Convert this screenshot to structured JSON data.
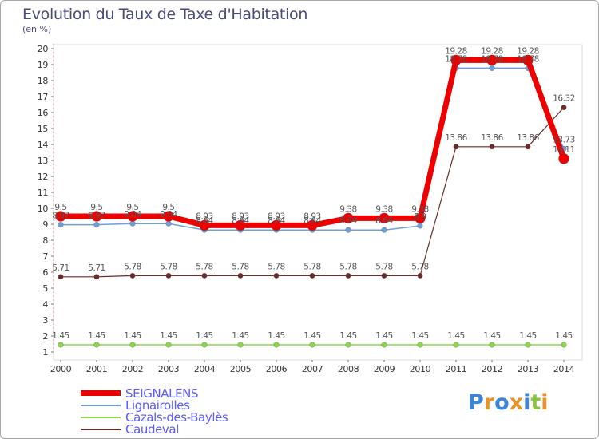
{
  "chart_data": {
    "type": "line",
    "title": "Evolution du Taux de Taxe d'Habitation",
    "ylabel": "(en %)",
    "xlabel": "",
    "ylim": [
      1,
      20
    ],
    "yticks": [
      1,
      2,
      3,
      4,
      5,
      6,
      7,
      8,
      9,
      10,
      11,
      12,
      13,
      14,
      15,
      16,
      17,
      18,
      19,
      20
    ],
    "categories": [
      "2000",
      "2001",
      "2002",
      "2003",
      "2004",
      "2005",
      "2006",
      "2007",
      "2008",
      "2009",
      "2010",
      "2011",
      "2012",
      "2013",
      "2014"
    ],
    "series": [
      {
        "name": "SEIGNALENS",
        "color": "#ee0000",
        "values": [
          9.5,
          9.5,
          9.5,
          9.5,
          8.93,
          8.93,
          8.93,
          8.93,
          9.38,
          9.38,
          9.38,
          19.28,
          19.28,
          19.28,
          13.11
        ],
        "labels": [
          "9.5",
          "9.5",
          "9.5",
          "9.5",
          "8.93",
          "8.93",
          "8.93",
          "8.93",
          "9.38",
          "9.38",
          "9.38",
          "19.28",
          "19.28",
          "19.28",
          "13.11"
        ]
      },
      {
        "name": "Lignairolles",
        "color": "#6f9fd8",
        "values": [
          8.97,
          8.97,
          9.04,
          9.04,
          8.64,
          8.64,
          8.64,
          8.64,
          8.64,
          8.64,
          8.9,
          18.78,
          18.78,
          18.78,
          13.73
        ],
        "labels": [
          "8.97",
          "8.97",
          "9.04",
          "9.04",
          "8.64",
          "8.64",
          "8.64",
          "8.64",
          "8.64",
          "8.64",
          "8.9",
          "18.78",
          "18.78",
          "18.78",
          "13.73"
        ]
      },
      {
        "name": "Cazals-des-Baylès",
        "color": "#8ad84a",
        "values": [
          1.45,
          1.45,
          1.45,
          1.45,
          1.45,
          1.45,
          1.45,
          1.45,
          1.45,
          1.45,
          1.45,
          1.45,
          1.45,
          1.45,
          1.45
        ],
        "labels": [
          "1.45",
          "1.45",
          "1.45",
          "1.45",
          "1.45",
          "1.45",
          "1.45",
          "1.45",
          "1.45",
          "1.45",
          "1.45",
          "1.45",
          "1.45",
          "1.45",
          "1.45"
        ]
      },
      {
        "name": "Caudeval",
        "color": "#6b2a2a",
        "values": [
          5.71,
          5.71,
          5.78,
          5.78,
          5.78,
          5.78,
          5.78,
          5.78,
          5.78,
          5.78,
          5.78,
          13.86,
          13.86,
          13.86,
          16.32
        ],
        "labels": [
          "5.71",
          "5.71",
          "5.78",
          "5.78",
          "5.78",
          "5.78",
          "5.78",
          "5.78",
          "5.78",
          "5.78",
          "5.78",
          "13.86",
          "13.86",
          "13.86",
          "16.32"
        ]
      }
    ],
    "legend_position": "bottom-left"
  },
  "branding": {
    "logo_text": "Proxiti"
  }
}
